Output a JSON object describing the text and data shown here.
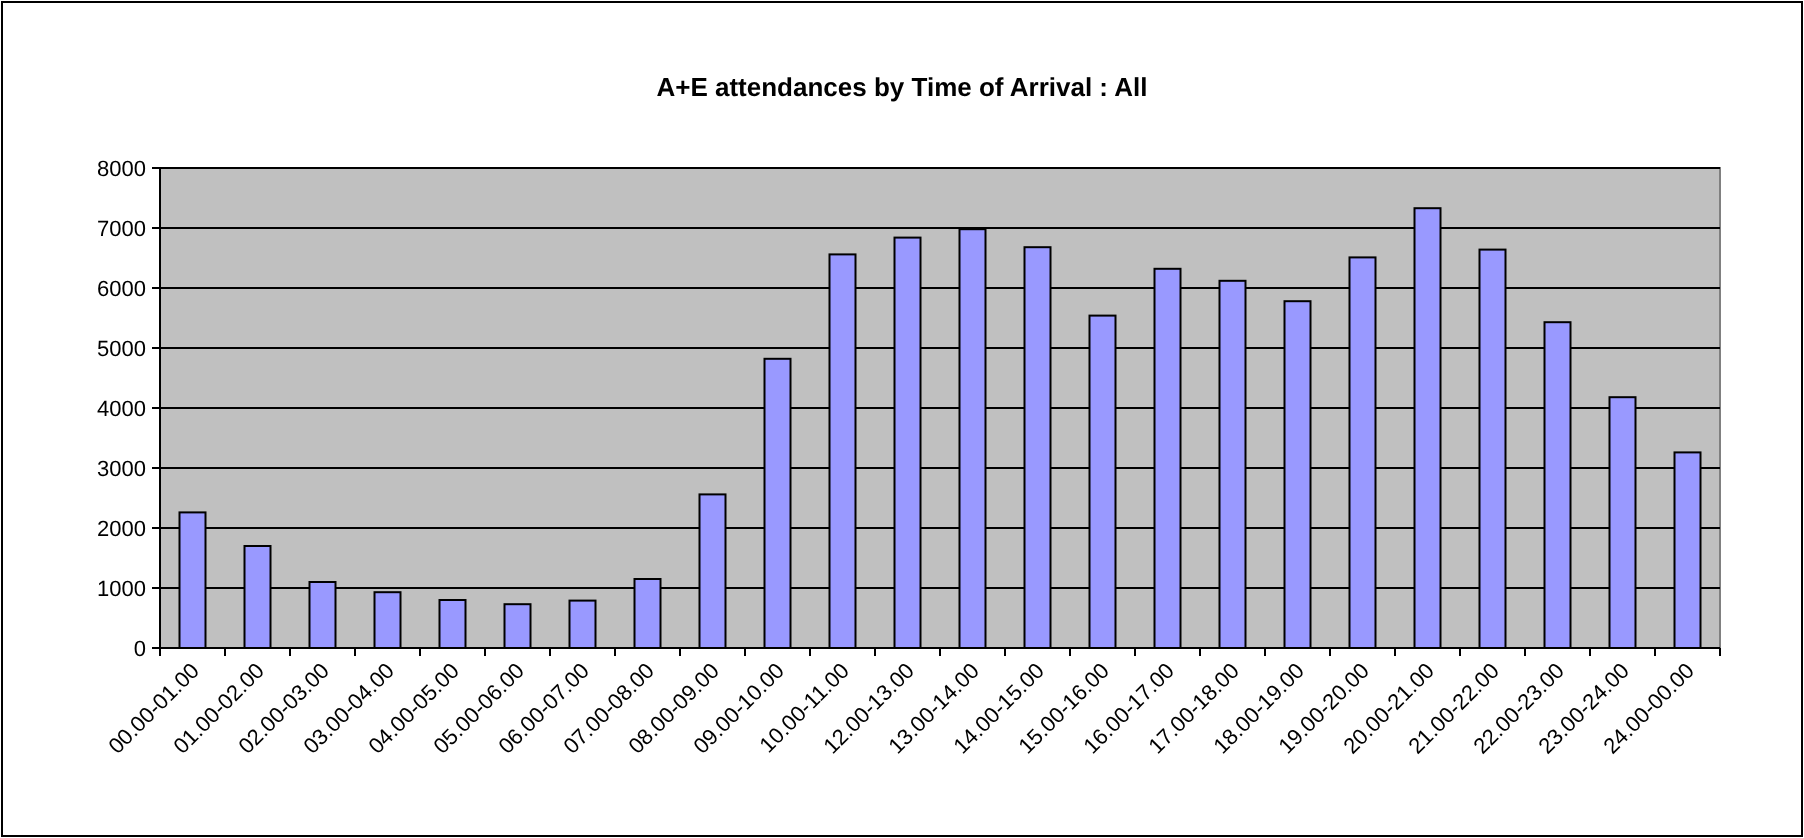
{
  "chart_data": {
    "type": "bar",
    "title": "A+E attendances by Time of Arrival : All",
    "categories": [
      "00.00-01.00",
      "01.00-02.00",
      "02.00-03.00",
      "03.00-04.00",
      "04.00-05.00",
      "05.00-06.00",
      "06.00-07.00",
      "07.00-08.00",
      "08.00-09.00",
      "09.00-10.00",
      "10.00-11.00",
      "12.00-13.00",
      "13.00-14.00",
      "14.00-15.00",
      "15.00-16.00",
      "16.00-17.00",
      "17.00-18.00",
      "18.00-19.00",
      "19.00-20.00",
      "20.00-21.00",
      "21.00-22.00",
      "22.00-23.00",
      "23.00-24.00",
      "24.00-00.00"
    ],
    "values": [
      2260,
      1700,
      1100,
      930,
      800,
      730,
      790,
      1150,
      2560,
      4820,
      6560,
      6840,
      6980,
      6680,
      5540,
      6320,
      6120,
      5780,
      6510,
      7330,
      6640,
      5430,
      4180,
      3260
    ],
    "color": "#9999ff",
    "ylim": [
      0,
      8000
    ],
    "yticks": [
      0,
      1000,
      2000,
      3000,
      4000,
      5000,
      6000,
      7000,
      8000
    ],
    "grid": "y"
  }
}
